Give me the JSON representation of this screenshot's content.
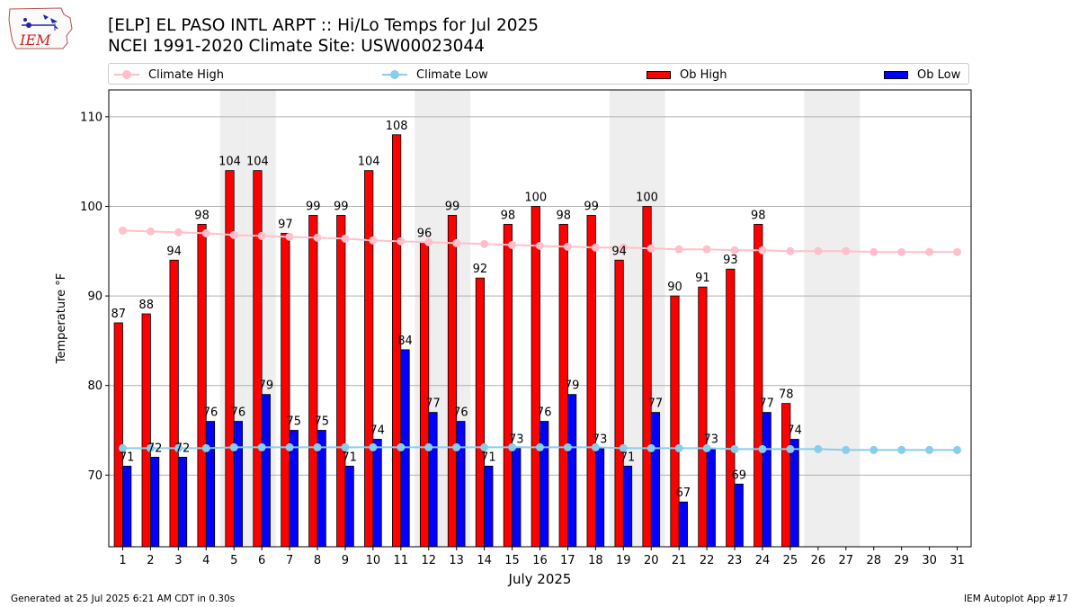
{
  "header": {
    "logo_text": "IEM",
    "title_line1": "[ELP] EL PASO INTL ARPT :: Hi/Lo Temps for Jul 2025",
    "title_line2": "NCEI 1991-2020 Climate Site: USW00023044"
  },
  "legend": {
    "items": [
      "Climate High",
      "Climate Low",
      "Ob High",
      "Ob Low"
    ]
  },
  "colors": {
    "climate_high": "#ffc0cb",
    "climate_low": "#87ceeb",
    "ob_high": "#ff0000",
    "ob_low": "#0000ff",
    "weekend_shade": "#eeeeee",
    "grid": "#b0b0b0"
  },
  "chart_data": {
    "type": "bar",
    "xlabel": "July 2025",
    "ylabel": "Temperature °F",
    "ylim": [
      62,
      113
    ],
    "yticks": [
      70,
      80,
      90,
      100,
      110
    ],
    "grid": "horizontal",
    "legend_position": "top",
    "categories": [
      "1",
      "2",
      "3",
      "4",
      "5",
      "6",
      "7",
      "8",
      "9",
      "10",
      "11",
      "12",
      "13",
      "14",
      "15",
      "16",
      "17",
      "18",
      "19",
      "20",
      "21",
      "22",
      "23",
      "24",
      "25",
      "26",
      "27",
      "28",
      "29",
      "30",
      "31"
    ],
    "shaded_days": [
      5,
      6,
      12,
      13,
      19,
      20,
      26,
      27
    ],
    "series": [
      {
        "name": "Ob High",
        "kind": "bar",
        "values": [
          87,
          88,
          94,
          98,
          104,
          104,
          97,
          99,
          99,
          104,
          108,
          96,
          99,
          92,
          98,
          100,
          98,
          99,
          94,
          100,
          90,
          91,
          93,
          98,
          78,
          null,
          null,
          null,
          null,
          null,
          null
        ]
      },
      {
        "name": "Ob Low",
        "kind": "bar",
        "values": [
          71,
          72,
          72,
          76,
          76,
          79,
          75,
          75,
          71,
          74,
          84,
          77,
          76,
          71,
          73,
          76,
          79,
          73,
          71,
          77,
          67,
          73,
          69,
          77,
          74,
          null,
          null,
          null,
          null,
          null,
          null
        ]
      },
      {
        "name": "Climate High",
        "kind": "line",
        "values": [
          97.3,
          97.2,
          97.1,
          97.0,
          96.8,
          96.7,
          96.6,
          96.5,
          96.4,
          96.2,
          96.1,
          96.0,
          95.9,
          95.8,
          95.7,
          95.6,
          95.5,
          95.4,
          95.4,
          95.3,
          95.2,
          95.2,
          95.1,
          95.1,
          95.0,
          95.0,
          95.0,
          94.9,
          94.9,
          94.9,
          94.9
        ]
      },
      {
        "name": "Climate Low",
        "kind": "line",
        "values": [
          73.0,
          73.0,
          73.0,
          73.0,
          73.1,
          73.1,
          73.1,
          73.1,
          73.1,
          73.1,
          73.1,
          73.1,
          73.1,
          73.1,
          73.1,
          73.1,
          73.1,
          73.1,
          73.0,
          73.0,
          73.0,
          73.0,
          72.9,
          72.9,
          72.9,
          72.9,
          72.8,
          72.8,
          72.8,
          72.8,
          72.8
        ]
      }
    ]
  },
  "footer": {
    "left": "Generated at 25 Jul 2025 6:21 AM CDT in 0.30s",
    "right": "IEM Autoplot App #17"
  }
}
